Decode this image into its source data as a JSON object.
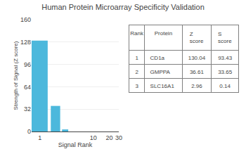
{
  "chart_data": {
    "type": "bar",
    "title": "Human Protein Microarray Specificity Validation",
    "xlabel": "Signal Rank",
    "ylabel": "Strength of Signal (Z score)",
    "x": [
      1,
      2,
      3
    ],
    "values": [
      130.04,
      36.61,
      2.96
    ],
    "color": "#4cb8dc",
    "log": "x",
    "xlim": [
      0.7,
      30
    ],
    "xticks": [
      1,
      10,
      20,
      30
    ],
    "ylim": [
      0,
      160
    ],
    "yticks": [
      0,
      32,
      64,
      96,
      128,
      160
    ],
    "grid": true,
    "table": {
      "columns": [
        "Rank",
        "Protein",
        "Z score",
        "S score"
      ],
      "rows": [
        [
          "1",
          "CD1a",
          "130.04",
          "93.43"
        ],
        [
          "2",
          "GMPPA",
          "36.61",
          "33.65"
        ],
        [
          "3",
          "SLC16A1",
          "2.96",
          "0.14"
        ]
      ]
    }
  }
}
